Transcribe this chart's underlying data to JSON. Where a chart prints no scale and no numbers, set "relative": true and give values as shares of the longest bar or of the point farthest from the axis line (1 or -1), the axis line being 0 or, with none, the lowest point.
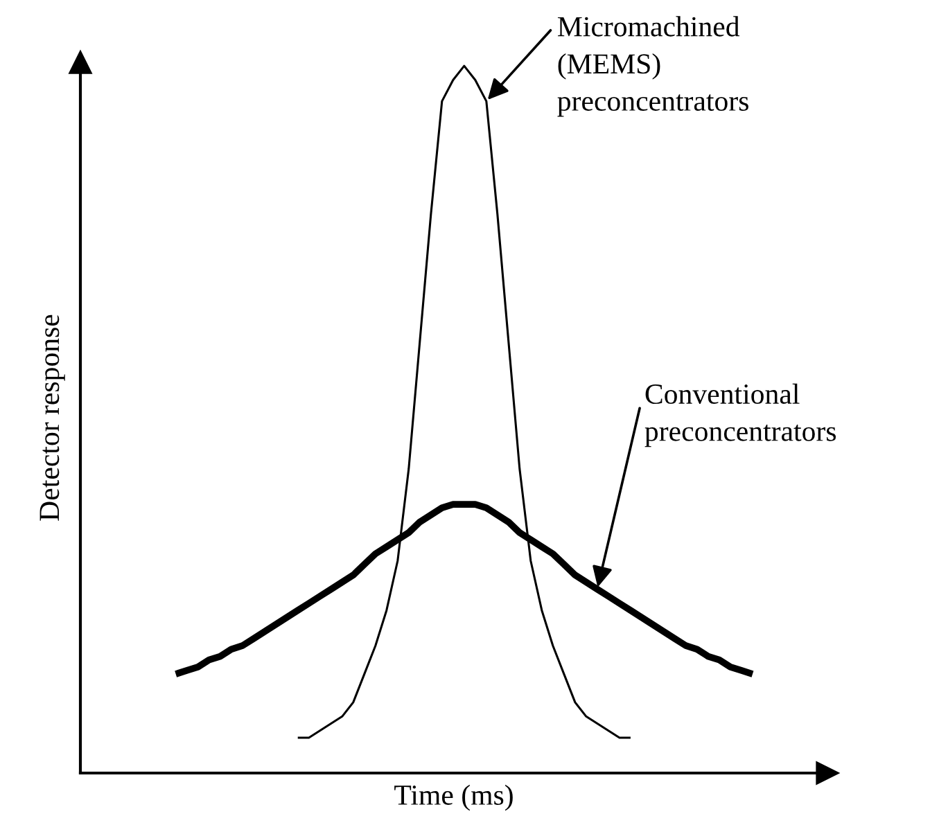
{
  "chart_data": {
    "type": "line",
    "relative": true,
    "xlabel": "Time (ms)",
    "ylabel": "Detector response",
    "tick_labels": false,
    "categories": [
      null,
      null,
      null,
      null,
      null,
      null,
      null,
      null,
      null,
      null,
      null,
      null,
      null,
      null,
      null,
      null,
      null,
      null,
      null,
      null,
      null,
      null,
      null,
      null,
      null,
      null,
      null,
      null,
      null,
      null,
      null,
      null,
      null,
      null,
      null,
      null,
      null,
      null,
      null,
      null,
      null,
      null,
      null,
      null,
      null,
      null,
      null,
      null,
      null,
      null,
      null,
      null,
      null
    ],
    "series": [
      {
        "color": "#000000",
        "values": [
          null,
          null,
          null,
          null,
          null,
          null,
          null,
          null,
          null,
          null,
          null,
          0.05,
          0.05,
          0.06,
          0.07,
          0.08,
          0.1,
          0.14,
          0.18,
          0.23,
          0.3,
          0.43,
          0.61,
          0.79,
          0.95,
          0.98,
          1.0,
          0.98,
          0.95,
          0.79,
          0.61,
          0.43,
          0.3,
          0.23,
          0.18,
          0.14,
          0.1,
          0.08,
          0.07,
          0.06,
          0.05,
          0.05,
          null,
          null,
          null,
          null,
          null,
          null,
          null,
          null,
          null,
          null,
          null
        ]
      },
      {
        "color": "#000000",
        "values": [
          0.14,
          0.145,
          0.15,
          0.16,
          0.165,
          0.175,
          0.18,
          0.19,
          0.2,
          0.21,
          0.22,
          0.23,
          0.24,
          0.25,
          0.26,
          0.27,
          0.28,
          0.295,
          0.31,
          0.32,
          0.33,
          0.34,
          0.355,
          0.365,
          0.375,
          0.38,
          0.38,
          0.38,
          0.375,
          0.365,
          0.355,
          0.34,
          0.33,
          0.32,
          0.31,
          0.295,
          0.28,
          0.27,
          0.26,
          0.25,
          0.24,
          0.23,
          0.22,
          0.21,
          0.2,
          0.19,
          0.18,
          0.175,
          0.165,
          0.16,
          0.15,
          0.145,
          0.14
        ]
      }
    ],
    "annotations": [
      "Micromachined\n(MEMS)\npreconcentrators",
      "Conventional\npreconcentrators"
    ]
  }
}
